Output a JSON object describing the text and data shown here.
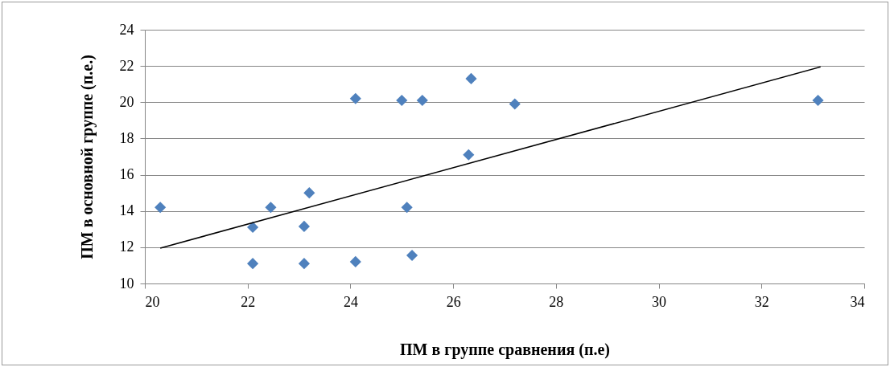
{
  "chart_data": {
    "type": "scatter",
    "xlabel": "ПМ в группе сравнения (п.е)",
    "ylabel": "ПМ в основной группе (п.е.)",
    "xlim": [
      20,
      34
    ],
    "xticks": [
      20,
      22,
      24,
      26,
      28,
      30,
      32,
      34
    ],
    "ylim": [
      10,
      24
    ],
    "yticks": [
      10,
      12,
      14,
      16,
      18,
      20,
      22,
      24
    ],
    "grid": "y",
    "marker": "diamond",
    "series": [
      {
        "color": "#4f81bd",
        "x": [
          20.3,
          22.1,
          22.1,
          22.45,
          23.2,
          23.1,
          23.1,
          24.1,
          24.1,
          25.0,
          25.4,
          25.1,
          25.2,
          26.35,
          26.3,
          27.2,
          33.1
        ],
        "values": [
          14.2,
          13.1,
          11.1,
          14.2,
          15.0,
          13.15,
          11.1,
          20.2,
          11.2,
          20.1,
          20.1,
          14.2,
          11.55,
          21.3,
          17.1,
          19.9,
          20.1
        ]
      },
      {
        "type": "line",
        "color": "#000000",
        "marker": "none",
        "x": [
          20.3,
          33.15
        ],
        "values": [
          11.95,
          21.95
        ]
      }
    ]
  }
}
